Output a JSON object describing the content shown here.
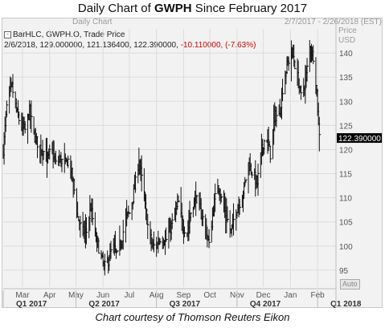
{
  "title": {
    "prefix": "Daily Chart of ",
    "ticker": "GWPH",
    "suffix": " Since February 2017"
  },
  "subtitle_left": "Daily Chart",
  "subtitle_right": "2/7/2017 - 2/26/2018 (EST)",
  "legend": {
    "line1": "BarHLC, GWPH.O, Trade Price",
    "line2_prefix": "2/6/2018, 129.000000, 121.136400, 122.390000, ",
    "line2_change": "-10.110000, (-7.63%)"
  },
  "currency_label": "Price",
  "currency_unit": "USD",
  "auto_label": "Auto",
  "caption": "Chart courtesy of Thomson Reuters Eikon",
  "colors": {
    "bars": "#111111",
    "last_price_bg": "#000000",
    "negative": "#d10000"
  },
  "chart_data": {
    "type": "bar",
    "subtype": "ohlc-hlc",
    "ylim": [
      91.5,
      145
    ],
    "y_ticks": [
      95,
      100,
      105,
      110,
      115,
      120,
      125,
      130,
      135,
      140
    ],
    "last_price": 122.39,
    "last_price_label": "122.390000",
    "month_labels": [
      "Mar",
      "Apr",
      "May",
      "Jun",
      "Jul",
      "Aug",
      "Sep",
      "Oct",
      "Nov",
      "Dec",
      "Jan",
      "Feb"
    ],
    "quarter_labels": [
      "Q1 2017",
      "Q2 2017",
      "Q3 2017",
      "Q4 2017",
      "Q1 2018"
    ],
    "x_range_days": [
      0,
      380
    ],
    "month_days": [
      22,
      53,
      83,
      114,
      144,
      175,
      206,
      236,
      267,
      297,
      328,
      359
    ],
    "quarter_days": [
      0,
      83,
      175,
      267,
      359
    ],
    "anchors": [
      [
        0,
        120
      ],
      [
        5,
        131
      ],
      [
        10,
        133
      ],
      [
        15,
        128
      ],
      [
        20,
        125
      ],
      [
        25,
        124
      ],
      [
        30,
        128
      ],
      [
        35,
        123
      ],
      [
        40,
        121
      ],
      [
        45,
        120
      ],
      [
        50,
        118
      ],
      [
        55,
        120
      ],
      [
        60,
        117
      ],
      [
        65,
        118
      ],
      [
        70,
        117
      ],
      [
        75,
        118
      ],
      [
        80,
        113
      ],
      [
        85,
        106
      ],
      [
        90,
        103
      ],
      [
        95,
        103
      ],
      [
        100,
        108
      ],
      [
        105,
        102
      ],
      [
        110,
        99
      ],
      [
        115,
        95.5
      ],
      [
        120,
        97
      ],
      [
        125,
        100
      ],
      [
        130,
        98
      ],
      [
        135,
        101
      ],
      [
        140,
        106
      ],
      [
        145,
        107
      ],
      [
        150,
        112
      ],
      [
        155,
        118
      ],
      [
        158,
        114
      ],
      [
        162,
        108
      ],
      [
        166,
        103
      ],
      [
        170,
        100
      ],
      [
        175,
        100
      ],
      [
        180,
        102
      ],
      [
        185,
        101
      ],
      [
        190,
        103
      ],
      [
        195,
        106
      ],
      [
        200,
        109
      ],
      [
        205,
        104
      ],
      [
        210,
        103
      ],
      [
        215,
        108
      ],
      [
        220,
        110
      ],
      [
        225,
        107
      ],
      [
        230,
        105
      ],
      [
        235,
        100
      ],
      [
        240,
        108
      ],
      [
        245,
        113
      ],
      [
        250,
        109
      ],
      [
        255,
        106
      ],
      [
        260,
        103
      ],
      [
        265,
        107
      ],
      [
        270,
        109
      ],
      [
        275,
        112
      ],
      [
        280,
        117
      ],
      [
        285,
        115
      ],
      [
        290,
        113
      ],
      [
        295,
        120
      ],
      [
        300,
        123
      ],
      [
        305,
        119
      ],
      [
        310,
        127
      ],
      [
        315,
        127
      ],
      [
        320,
        134
      ],
      [
        325,
        138
      ],
      [
        330,
        140
      ],
      [
        335,
        136
      ],
      [
        340,
        131
      ],
      [
        345,
        134
      ],
      [
        350,
        141
      ],
      [
        355,
        139
      ],
      [
        358,
        132
      ],
      [
        360,
        125
      ],
      [
        362,
        122.39
      ]
    ]
  }
}
